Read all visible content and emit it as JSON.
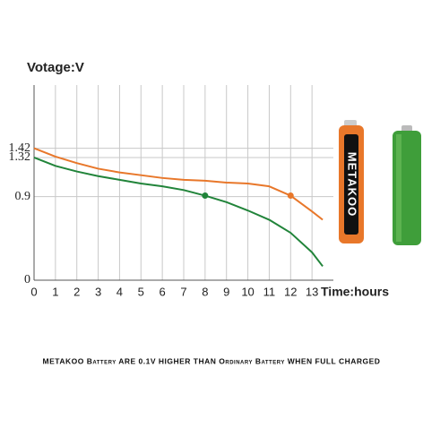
{
  "chart_data": {
    "type": "line",
    "y_label": "Votage:V",
    "x_label": "Time:hours",
    "caption": "METAKOO Battery ARE 0.1V HIGHER THAN Ordinary Battery WHEN FULL CHARGED",
    "battery_brand": "METAKOO",
    "x": [
      0,
      1,
      2,
      3,
      4,
      5,
      6,
      7,
      8,
      9,
      10,
      11,
      12,
      13,
      13.5
    ],
    "series": [
      {
        "color": "#e8772a",
        "marker_index": 12,
        "values": [
          1.42,
          1.33,
          1.26,
          1.2,
          1.16,
          1.13,
          1.1,
          1.08,
          1.07,
          1.05,
          1.04,
          1.01,
          0.91,
          0.74,
          0.65
        ]
      },
      {
        "color": "#21843a",
        "marker_index": 8,
        "values": [
          1.32,
          1.23,
          1.17,
          1.12,
          1.08,
          1.04,
          1.01,
          0.97,
          0.91,
          0.84,
          0.75,
          0.65,
          0.51,
          0.3,
          0.15
        ]
      }
    ],
    "xlim": [
      0,
      14
    ],
    "ylim": [
      0,
      2.1
    ],
    "xticks": [
      0,
      1,
      2,
      3,
      4,
      5,
      6,
      7,
      8,
      9,
      10,
      11,
      12,
      13
    ],
    "yticks": [
      0,
      0.9,
      1.32,
      1.42
    ],
    "grid": true
  }
}
